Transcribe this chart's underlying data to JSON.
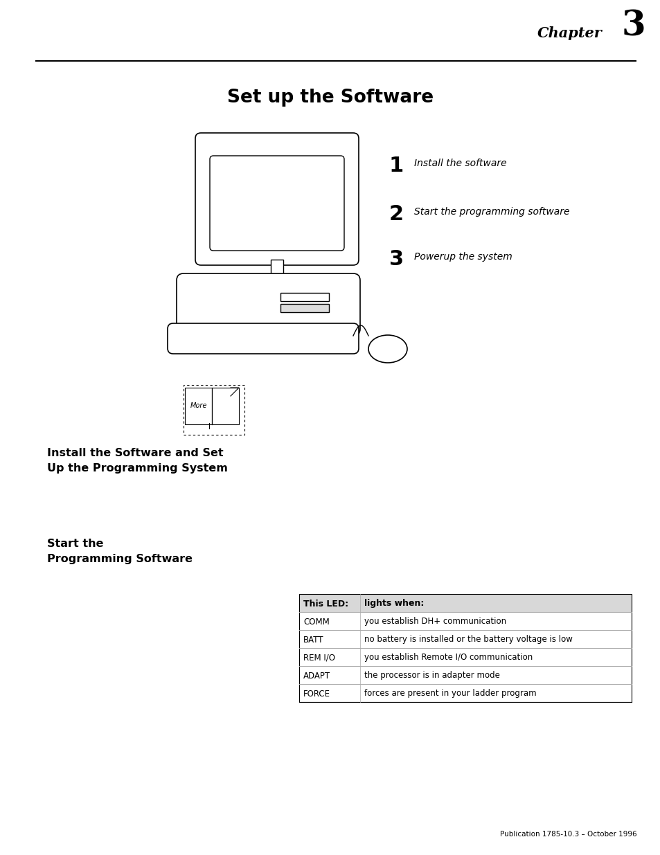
{
  "page_width": 9.54,
  "page_height": 12.35,
  "bg_color": "#ffffff",
  "chapter_label": "Chapter",
  "chapter_number": "3",
  "title": "Set up the Software",
  "steps": [
    {
      "num": "1",
      "text": "Install the software"
    },
    {
      "num": "2",
      "text": "Start the programming software"
    },
    {
      "num": "3",
      "text": "Powerup the system"
    }
  ],
  "section1_title_line1": "Install the Software and Set",
  "section1_title_line2": "Up the Programming System",
  "section2_title_line1": "Start the",
  "section2_title_line2": "Programming Software",
  "table_header": [
    "This LED:",
    "lights when:"
  ],
  "table_rows": [
    [
      "COMM",
      "you establish DH+ communication"
    ],
    [
      "BATT",
      "no battery is installed or the battery voltage is low"
    ],
    [
      "REM I/O",
      "you establish Remote I/O communication"
    ],
    [
      "ADAPT",
      "the processor is in adapter mode"
    ],
    [
      "FORCE",
      "forces are present in your ladder program"
    ]
  ],
  "footer_text": "Publication 1785-10.3 – October 1996",
  "header_bg_color": "#d8d8d8",
  "row_line_color": "#aaaaaa",
  "table_border_color": "#000000"
}
